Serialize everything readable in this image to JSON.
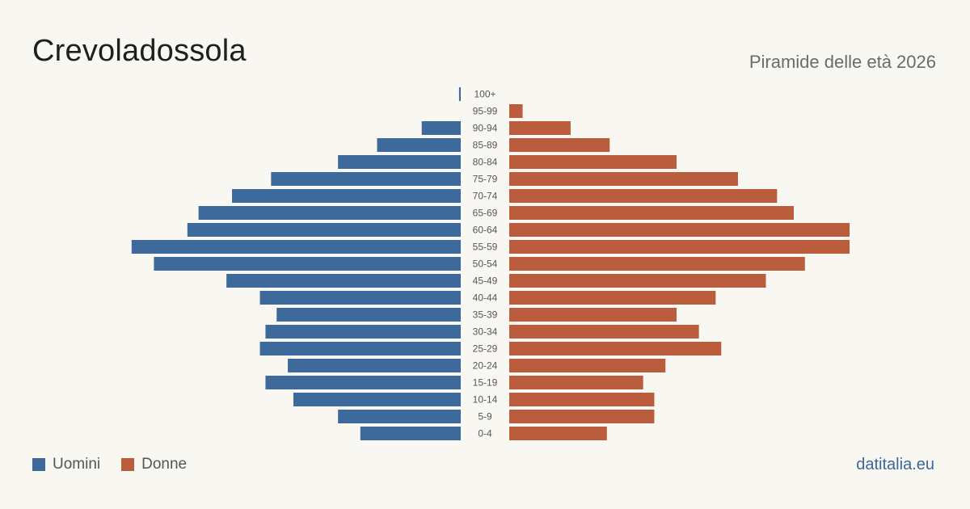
{
  "header": {
    "title": "Crevoladossola",
    "subtitle": "Piramide delle età 2026"
  },
  "legend": {
    "men_label": "Uomini",
    "women_label": "Donne"
  },
  "brand": "datitalia.eu",
  "colors": {
    "background": "#f9f7f2",
    "men": "#3d6a9a",
    "women": "#b95d3c"
  },
  "chart_data": {
    "type": "bar",
    "orientation": "horizontal-pyramid",
    "categories": [
      "100+",
      "95-99",
      "90-94",
      "85-89",
      "80-84",
      "75-79",
      "70-74",
      "65-69",
      "60-64",
      "55-59",
      "50-54",
      "45-49",
      "40-44",
      "35-39",
      "30-34",
      "25-29",
      "20-24",
      "15-19",
      "10-14",
      "5-9",
      "0-4"
    ],
    "series": [
      {
        "name": "Uomini",
        "values": [
          0.3,
          0,
          7,
          15,
          22,
          34,
          41,
          47,
          49,
          59,
          55,
          42,
          36,
          33,
          35,
          36,
          31,
          35,
          30,
          22,
          18
        ]
      },
      {
        "name": "Donne",
        "values": [
          0,
          2.4,
          11,
          18,
          30,
          41,
          48,
          51,
          61,
          61,
          53,
          46,
          37,
          30,
          34,
          38,
          28,
          24,
          26,
          26,
          17.5
        ]
      }
    ],
    "xlim": [
      0,
      61
    ],
    "legend_position": "bottom-left",
    "grid": false
  }
}
